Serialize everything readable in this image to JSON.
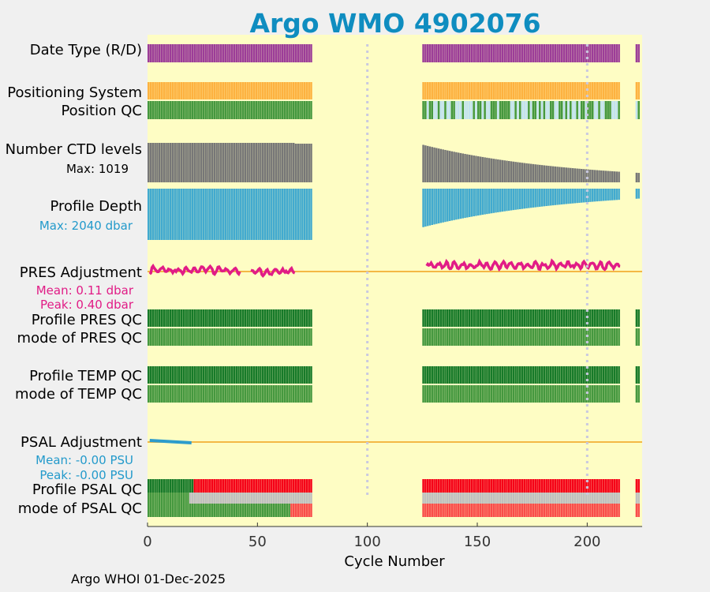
{
  "title": "Argo WMO 4902076",
  "footer": "Argo WHOI 01-Dec-2025",
  "chart_data": {
    "type": "other",
    "description_rows": "cycle-by-cycle quality-control status panel for an Argo float",
    "xlabel": "Cycle Number",
    "xlim": [
      0,
      225
    ],
    "xticks": [
      0,
      50,
      100,
      150,
      200
    ],
    "gaps": [
      [
        76,
        126
      ],
      [
        216,
        223
      ]
    ],
    "row_labels": {
      "date_type": "Date Type (R/D)",
      "positioning": "Positioning System",
      "position_qc": "Position QC",
      "ctd_levels": "Number CTD levels",
      "ctd_max": "Max: 1019",
      "profile_depth": "Profile Depth",
      "depth_max": "Max: 2040 dbar",
      "pres_adj": "PRES Adjustment",
      "pres_mean": "Mean: 0.11 dbar",
      "pres_peak": "Peak: 0.40 dbar",
      "pres_qc": "Profile PRES QC",
      "pres_mode": "mode of PRES QC",
      "temp_qc": "Profile TEMP QC",
      "temp_mode": "mode of TEMP QC",
      "psal_adj": "PSAL Adjustment",
      "psal_mean": "Mean: -0.00 PSU",
      "psal_peak": "Peak: -0.00 PSU",
      "psal_qc": "Profile PSAL QC",
      "psal_mode": "mode of PSAL QC"
    },
    "ctd_levels_max": 1019,
    "profile_depth_max_dbar": 2040,
    "pres_adjustment": {
      "mean_dbar": 0.11,
      "peak_dbar": 0.4
    },
    "psal_adjustment": {
      "mean_psu": -0.0,
      "peak_psu": -0.0
    },
    "colors": {
      "background": "#fefdc4",
      "date_type": "#9c3d98",
      "positioning": "#fdb240",
      "qc_good": "#177a29",
      "mode_good": "#45983f",
      "position_alt": "#c2e3ef",
      "ctd": "#777777",
      "depth": "#42aacf",
      "pres_adj": "#e11c86",
      "psal_adj": "#2d9ccc",
      "zero_line": "#f4b845",
      "psal_bad": "#f50017",
      "psal_mode_bad": "#f94c4a",
      "psal_gray": "#bfbfbf",
      "title": "#0f8dc0"
    }
  }
}
